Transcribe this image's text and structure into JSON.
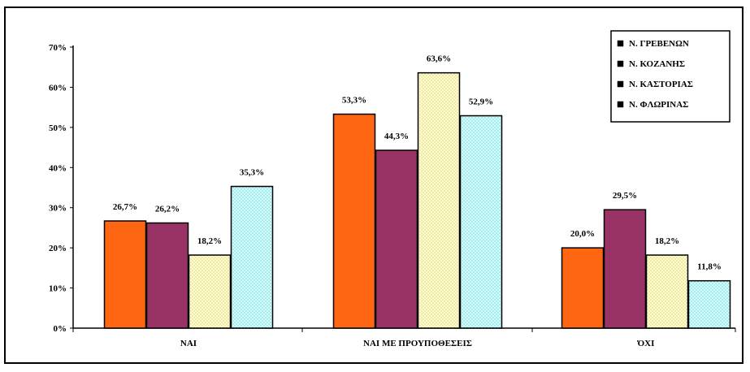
{
  "chart_data": {
    "type": "bar",
    "categories": [
      "ΝΑΙ",
      "ΝΑΙ ΜΕ ΠΡΟΥΠΟΘΕΣΕΙΣ",
      "ΌΧΙ"
    ],
    "series": [
      {
        "name": "Ν. ΓΡΕΒΕΝΩΝ",
        "values": [
          26.7,
          53.3,
          20.0
        ],
        "labels": [
          "26,7%",
          "53,3%",
          "20,0%"
        ],
        "color": "#FF6611",
        "pattern": "solid"
      },
      {
        "name": "Ν. ΚΟΖΑΝΗΣ",
        "values": [
          26.2,
          44.3,
          29.5
        ],
        "labels": [
          "26,2%",
          "44,3%",
          "29,5%"
        ],
        "color": "#993366",
        "pattern": "solid"
      },
      {
        "name": "Ν. ΚΑΣΤΟΡΙΑΣ",
        "values": [
          18.2,
          63.6,
          18.2
        ],
        "labels": [
          "18,2%",
          "63,6%",
          "18,2%"
        ],
        "color": "#FFFFCC",
        "pattern": "dots"
      },
      {
        "name": "Ν. ΦΛΩΡΙΝΑΣ",
        "values": [
          35.3,
          52.9,
          11.8
        ],
        "labels": [
          "35,3%",
          "52,9%",
          "11,8%"
        ],
        "color": "#CCFFFF",
        "pattern": "dots"
      }
    ],
    "yticks": [
      0,
      10,
      20,
      30,
      40,
      50,
      60,
      70
    ],
    "ytick_labels": [
      "0%",
      "10%",
      "20%",
      "30%",
      "40%",
      "50%",
      "60%",
      "70%"
    ],
    "ylim": [
      0,
      70
    ],
    "title": "",
    "xlabel": "",
    "ylabel": "",
    "grid": false,
    "legend": "top-right"
  }
}
